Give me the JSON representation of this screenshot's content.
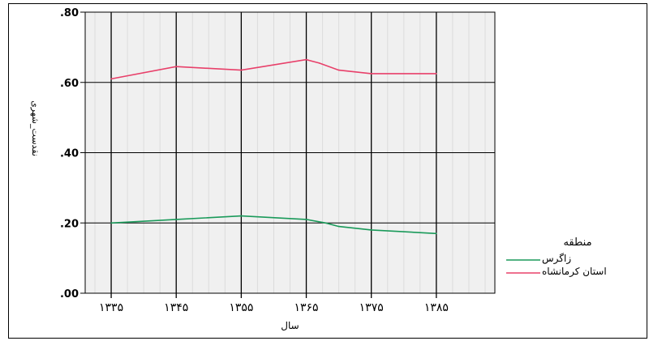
{
  "chart_data": {
    "type": "line",
    "title": "",
    "xlabel": "سال",
    "ylabel": "نقدست_شهری",
    "x": [
      1335,
      1345,
      1355,
      1365,
      1375,
      1385
    ],
    "x_tick_labels": [
      "۱۳۳۵",
      "۱۳۴۵",
      "۱۳۵۵",
      "۱۳۶۵",
      "۱۳۷۵",
      "۱۳۸۵"
    ],
    "xlim": [
      1331,
      1394
    ],
    "ylim": [
      0,
      0.8
    ],
    "y_ticks": [
      0,
      0.2,
      0.4,
      0.6,
      0.8
    ],
    "y_tick_labels": [
      ".00",
      ".20",
      ".40",
      ".60",
      ".80"
    ],
    "grid": true,
    "legend_position": "right",
    "legend_title": "منطقه",
    "series": [
      {
        "name": "زاگرس",
        "color": "#1a9a5a",
        "points": [
          [
            1335,
            0.2
          ],
          [
            1345,
            0.21
          ],
          [
            1355,
            0.22
          ],
          [
            1365,
            0.21
          ],
          [
            1368,
            0.2
          ],
          [
            1370,
            0.19
          ],
          [
            1375,
            0.18
          ],
          [
            1385,
            0.17
          ]
        ]
      },
      {
        "name": "استان کرمانشاه",
        "color": "#e8406a",
        "points": [
          [
            1335,
            0.61
          ],
          [
            1345,
            0.645
          ],
          [
            1355,
            0.635
          ],
          [
            1365,
            0.665
          ],
          [
            1367,
            0.655
          ],
          [
            1370,
            0.635
          ],
          [
            1375,
            0.625
          ],
          [
            1385,
            0.625
          ]
        ]
      }
    ]
  }
}
